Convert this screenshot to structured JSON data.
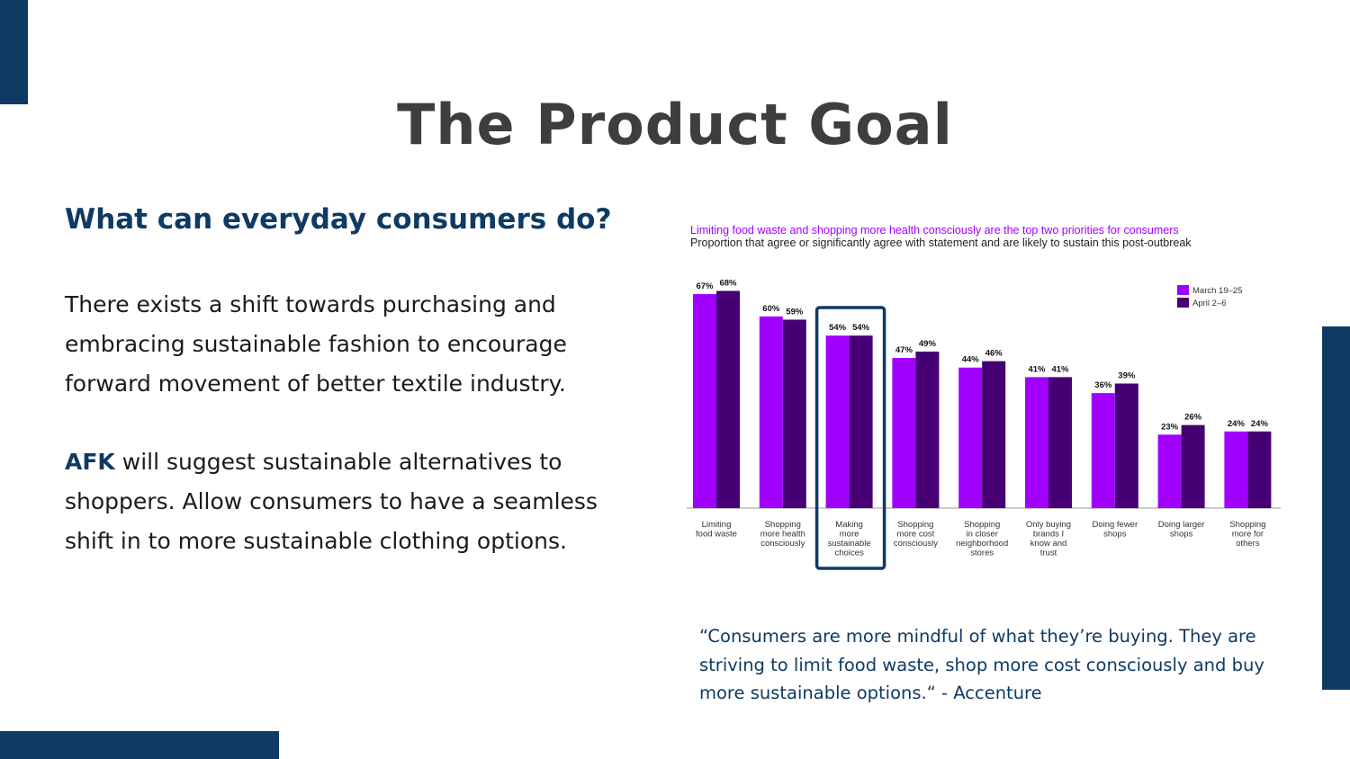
{
  "slide": {
    "title": "The Product Goal",
    "subtitle": "What can everyday consumers do?",
    "paragraph1": "There exists a shift towards purchasing and embracing sustainable fashion to encourage forward movement of better textile industry.",
    "paragraph2_brand": "AFK",
    "paragraph2_rest": " will suggest sustainable alternatives to shoppers. Allow consumers to have a seamless shift in to more sustainable clothing options.",
    "quote": "“Consumers are more mindful of what they’re buying. They are striving to limit food waste, shop more cost consciously and buy more sustainable options.“ - Accenture"
  },
  "colors": {
    "accent": "#0e3a63",
    "series1": "#a100ff",
    "series2": "#460073",
    "highlight_box": "#0e3a63"
  },
  "chart_data": {
    "type": "bar",
    "title": "Limiting food waste and shopping more health consciously are the top two priorities for consumers",
    "subtitle": "Proportion that agree or significantly agree with statement and are likely to sustain this post-outbreak",
    "categories": [
      [
        "Limiting",
        "food waste"
      ],
      [
        "Shopping",
        "more health",
        "consciously"
      ],
      [
        "Making",
        "more",
        "sustainable",
        "choices"
      ],
      [
        "Shopping",
        "more cost",
        "consciously"
      ],
      [
        "Shopping",
        "in closer",
        "neighborhood",
        "stores"
      ],
      [
        "Only buying",
        "brands I",
        "know and",
        "trust"
      ],
      [
        "Doing fewer",
        "shops"
      ],
      [
        "Doing larger",
        "shops"
      ],
      [
        "Shopping",
        "more for",
        "others"
      ]
    ],
    "series": [
      {
        "name": "March 19–25",
        "values": [
          67,
          60,
          54,
          47,
          44,
          41,
          36,
          23,
          24
        ]
      },
      {
        "name": "April 2–6",
        "values": [
          68,
          59,
          54,
          49,
          46,
          41,
          39,
          26,
          24
        ]
      }
    ],
    "value_suffix": "%",
    "ylim": [
      0,
      72
    ],
    "highlighted_category_index": 2,
    "legend_position": "top-right",
    "grid": false
  }
}
